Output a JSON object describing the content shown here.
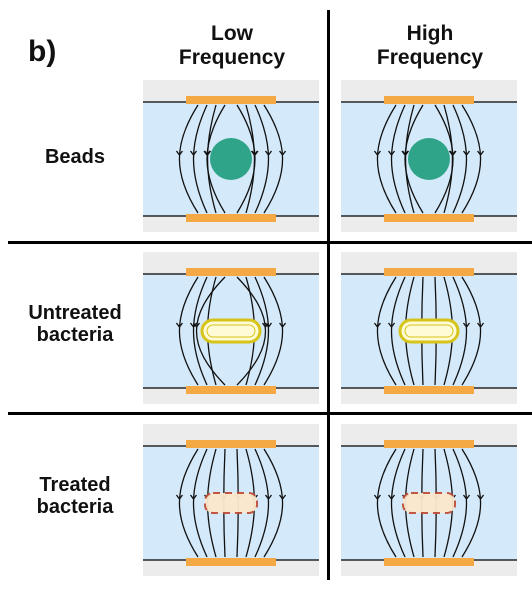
{
  "panel_label": "b)",
  "columns": [
    {
      "line1": "Low",
      "line2": "Frequency"
    },
    {
      "line1": "High",
      "line2": "Frequency"
    }
  ],
  "rows": [
    {
      "line1": "Beads",
      "line2": "",
      "sample": "bead"
    },
    {
      "line1": "Untreated",
      "line2": "bacteria",
      "sample": "bacterium-intact"
    },
    {
      "line1": "Treated",
      "line2": "bacteria",
      "sample": "bacterium-damaged"
    }
  ],
  "cells": [
    {
      "row": 0,
      "col": 0,
      "field_lines": "bend-around-particle"
    },
    {
      "row": 0,
      "col": 1,
      "field_lines": "bend-around-particle"
    },
    {
      "row": 1,
      "col": 0,
      "field_lines": "bend-around-particle"
    },
    {
      "row": 1,
      "col": 1,
      "field_lines": "pass-through-particle"
    },
    {
      "row": 2,
      "col": 0,
      "field_lines": "pass-through-particle"
    },
    {
      "row": 2,
      "col": 1,
      "field_lines": "pass-through-particle"
    }
  ],
  "colors": {
    "channel": "#d4e9f9",
    "outer_band": "#ececec",
    "electrode": "#f5a945",
    "field_line": "#111111",
    "bead_fill": "#1e9c7c",
    "bacterium_fill": "#fffbd6",
    "bacterium_outline": "#d7c41a",
    "treated_fill": "#fde8cc",
    "treated_outline": "#c0503a"
  }
}
